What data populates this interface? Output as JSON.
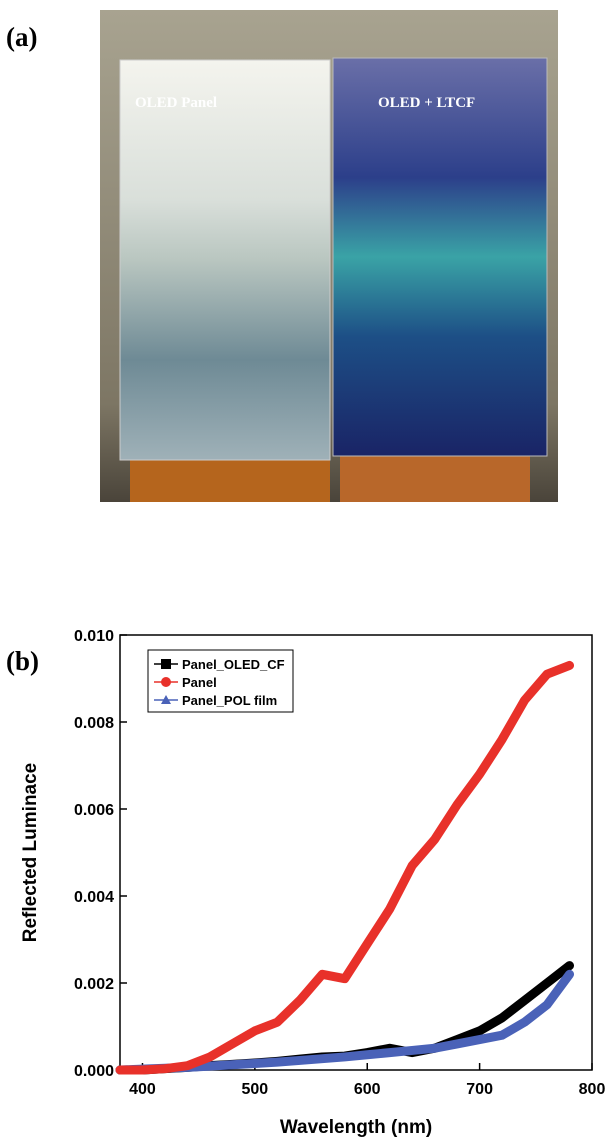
{
  "panel_a": {
    "label": "(a)",
    "left_panel_text": "OLED Panel",
    "right_panel_text": "OLED + LTCF"
  },
  "chart_data": {
    "type": "line",
    "panel_label": "(b)",
    "x_label": "Wavelength (nm)",
    "y_label": "Reflected Luminace",
    "x": [
      380,
      400,
      420,
      440,
      460,
      480,
      500,
      520,
      540,
      560,
      580,
      600,
      620,
      640,
      660,
      680,
      700,
      720,
      740,
      760,
      780
    ],
    "series": [
      {
        "name": "Panel_OLED_CF",
        "color": "#000000",
        "marker": "square",
        "values": [
          0,
          0,
          3e-05,
          6e-05,
          0.0001,
          0.00013,
          0.00016,
          0.0002,
          0.00025,
          0.0003,
          0.00032,
          0.0004,
          0.0005,
          0.0004,
          0.0005,
          0.0007,
          0.0009,
          0.0012,
          0.0016,
          0.002,
          0.0024
        ]
      },
      {
        "name": "Panel",
        "color": "#e8312a",
        "marker": "circle",
        "values": [
          0,
          0,
          3e-05,
          0.0001,
          0.0003,
          0.0006,
          0.0009,
          0.0011,
          0.0016,
          0.0022,
          0.0021,
          0.0029,
          0.0037,
          0.0047,
          0.0053,
          0.0061,
          0.0068,
          0.0076,
          0.0085,
          0.0091,
          0.0093
        ]
      },
      {
        "name": "Panel_POL film",
        "color": "#4a62b8",
        "marker": "triangle",
        "values": [
          0,
          2e-05,
          4e-05,
          6e-05,
          9e-05,
          0.00012,
          0.00015,
          0.00018,
          0.00022,
          0.00026,
          0.0003,
          0.00035,
          0.0004,
          0.00045,
          0.0005,
          0.0006,
          0.0007,
          0.0008,
          0.0011,
          0.0015,
          0.0022
        ]
      }
    ],
    "xlim": [
      380,
      800
    ],
    "xticks": [
      400,
      500,
      600,
      700,
      800
    ],
    "ylim": [
      0,
      0.01
    ],
    "yticks": [
      {
        "value": 0,
        "label": "0.000"
      },
      {
        "value": 0.002,
        "label": "0.002"
      },
      {
        "value": 0.004,
        "label": "0.004"
      },
      {
        "value": 0.006,
        "label": "0.006"
      },
      {
        "value": 0.008,
        "label": "0.008"
      },
      {
        "value": 0.01,
        "label": "0.010"
      }
    ],
    "legend": "upper-left",
    "grid": false
  }
}
